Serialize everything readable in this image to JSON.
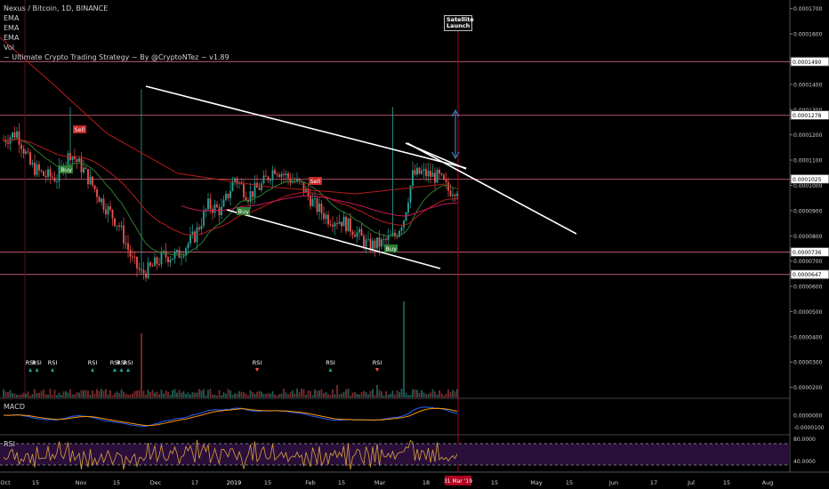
{
  "legend": {
    "title": "Nexus / Bitcoin, 1D, BINANCE",
    "lines": [
      "EMA",
      "EMA",
      "EMA",
      "Vol",
      "~ Ultimate Crypto Trading Strategy ~ By @CryptoNTez ~ v1.89"
    ]
  },
  "panes": {
    "macd": "MACD",
    "rsi": "RSI"
  },
  "event": {
    "label": "Satellite Launch",
    "date_label": "31 Mar '19"
  },
  "signals": {
    "buy": "Buy",
    "sell": "Sell",
    "rsi": "RSI"
  },
  "colors": {
    "up": "#26a69a",
    "down": "#ef5350",
    "ema_green": "#2e7d32",
    "ema_red": "#b71c1c",
    "ema_pink": "#c2185b",
    "level": "#d4637a",
    "channel": "#ffffff",
    "macd": "#2962ff",
    "signal": "#ff9800",
    "rsi": "#d9a23c",
    "rsi_band": "#2a0f3a"
  },
  "chart_data": [
    {
      "type": "candlestick",
      "title": "Nexus / Bitcoin, 1D, BINANCE",
      "x_tick_labels": [
        "Oct",
        "15",
        "Nov",
        "15",
        "Dec",
        "17",
        "2019",
        "15",
        "Feb",
        "15",
        "Mar",
        "18",
        "31 Mar '19",
        "15",
        "May",
        "15",
        "Jun",
        "17",
        "Jul",
        "15",
        "Aug"
      ],
      "y_tick_labels": [
        "0.0000200",
        "0.0000300",
        "0.0000400",
        "0.0000500",
        "0.0000600",
        "0.0000700",
        "0.0000800",
        "0.0000900",
        "0.0001000",
        "0.0001100",
        "0.0001200",
        "0.0001300",
        "0.0001400",
        "0.0001500",
        "0.0001600",
        "0.0001700"
      ],
      "price_levels": [
        "0.0001490",
        "0.0001278",
        "0.0001025",
        "0.0000736",
        "0.0000647"
      ],
      "ylim": [
        1.6e-05,
        0.000172
      ],
      "price_path": [
        [
          0,
          0.000118
        ],
        [
          6,
          0.000121
        ],
        [
          12,
          0.000108
        ],
        [
          18,
          0.000104
        ],
        [
          24,
          0.000103
        ],
        [
          30,
          0.000113
        ],
        [
          36,
          0.000106
        ],
        [
          44,
          9.4e-05
        ],
        [
          52,
          8.4e-05
        ],
        [
          58,
          7e-05
        ],
        [
          62,
          6.5e-05
        ],
        [
          66,
          6.7e-05
        ],
        [
          72,
          7.2e-05
        ],
        [
          78,
          7.2e-05
        ],
        [
          86,
          8e-05
        ],
        [
          92,
          9.2e-05
        ],
        [
          98,
          9e-05
        ],
        [
          104,
          0.000103
        ],
        [
          110,
          9.6e-05
        ],
        [
          116,
          0.0001
        ],
        [
          122,
          0.000107
        ],
        [
          128,
          0.000103
        ],
        [
          134,
          0.0001
        ],
        [
          140,
          9.2e-05
        ],
        [
          146,
          8.7e-05
        ],
        [
          152,
          8.6e-05
        ],
        [
          158,
          8.2e-05
        ],
        [
          164,
          7.6e-05
        ],
        [
          170,
          7.7e-05
        ],
        [
          176,
          8e-05
        ],
        [
          180,
          8.7e-05
        ],
        [
          184,
          0.000104
        ],
        [
          188,
          0.000105
        ],
        [
          192,
          0.000104
        ],
        [
          196,
          0.000103
        ],
        [
          200,
          9.8e-05
        ],
        [
          204,
          9.9e-05
        ]
      ],
      "signals": [
        {
          "type": "Sell",
          "day": 26
        },
        {
          "type": "Buy",
          "day": 20
        },
        {
          "type": "Buy",
          "day": 95
        },
        {
          "type": "Sell",
          "day": 123
        },
        {
          "type": "Buy",
          "day": 155
        }
      ],
      "rsi_markers": [
        {
          "day": 12,
          "dir": "up"
        },
        {
          "day": 15,
          "dir": "up"
        },
        {
          "day": 22,
          "dir": "up"
        },
        {
          "day": 40,
          "dir": "up"
        },
        {
          "day": 50,
          "dir": "up"
        },
        {
          "day": 53,
          "dir": "up"
        },
        {
          "day": 56,
          "dir": "up"
        },
        {
          "day": 114,
          "dir": "down"
        },
        {
          "day": 147,
          "dir": "up"
        },
        {
          "day": 168,
          "dir": "down"
        }
      ]
    },
    {
      "type": "line",
      "title": "MACD",
      "y_tick_labels": [
        "0.0000000",
        "-0.0000100"
      ]
    },
    {
      "type": "line",
      "title": "RSI",
      "y_tick_labels": [
        "80.0000",
        "40.0000"
      ]
    }
  ]
}
